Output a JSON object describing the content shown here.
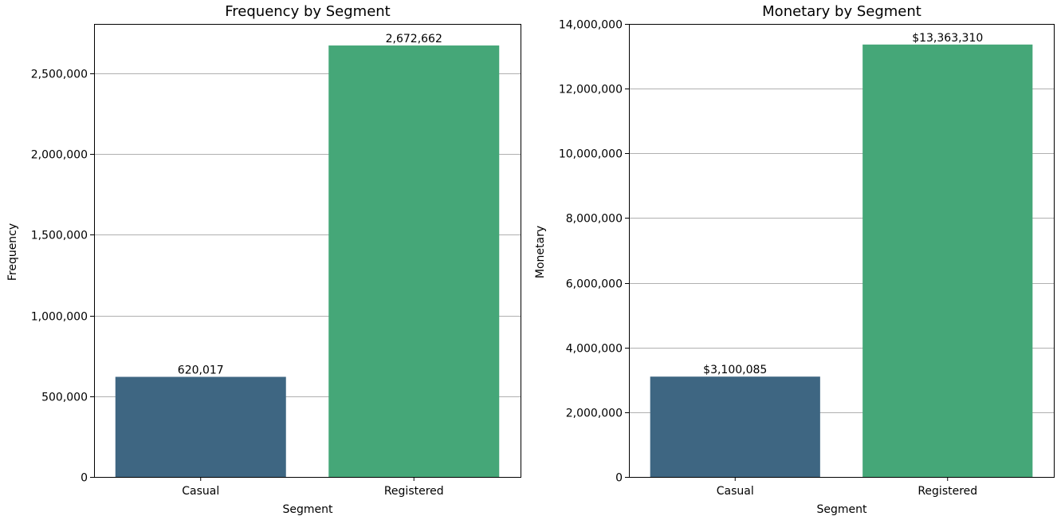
{
  "chart_data": [
    {
      "type": "bar",
      "title": "Frequency by Segment",
      "xlabel": "Segment",
      "ylabel": "Frequency",
      "categories": [
        "Casual",
        "Registered"
      ],
      "values": [
        620017,
        2672662
      ],
      "value_labels": [
        "620,017",
        "2,672,662"
      ],
      "colors": [
        "#3e6682",
        "#45a778"
      ],
      "ylim": [
        0,
        2806295
      ],
      "yticks": [
        0,
        500000,
        1000000,
        1500000,
        2000000,
        2500000
      ],
      "ytick_labels": [
        "0",
        "500,000",
        "1,000,000",
        "1,500,000",
        "2,000,000",
        "2,500,000"
      ],
      "grid": "y"
    },
    {
      "type": "bar",
      "title": "Monetary by Segment",
      "xlabel": "Segment",
      "ylabel": "Monetary",
      "categories": [
        "Casual",
        "Registered"
      ],
      "values": [
        3100085,
        13363310
      ],
      "value_labels": [
        "$3,100,085",
        "$13,363,310"
      ],
      "colors": [
        "#3e6682",
        "#45a778"
      ],
      "ylim": [
        0,
        14000000
      ],
      "yticks": [
        0,
        2000000,
        4000000,
        6000000,
        8000000,
        10000000,
        12000000,
        14000000
      ],
      "ytick_labels": [
        "0",
        "2,000,000",
        "4,000,000",
        "6,000,000",
        "8,000,000",
        "10,000,000",
        "12,000,000",
        "14,000,000"
      ],
      "grid": "y"
    }
  ]
}
